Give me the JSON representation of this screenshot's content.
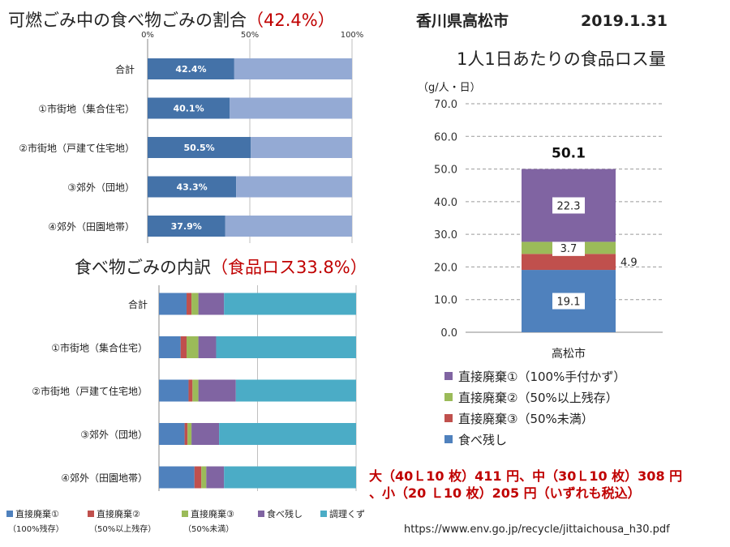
{
  "chart_data": [
    {
      "type": "bar",
      "orientation": "horizontal",
      "stacked": true,
      "title": "可燃ごみ中の食べ物ごみの割合",
      "title_highlight": "（42.4%）",
      "tick_labels": [
        "0%",
        "50%",
        "100%"
      ],
      "xlim": [
        0,
        100
      ],
      "categories": [
        "合計",
        "①市街地（集合住宅）",
        "②市街地（戸建て住宅地）",
        "③郊外（団地）",
        "④郊外（田園地帯）"
      ],
      "values": [
        42.4,
        40.1,
        50.5,
        43.3,
        37.9
      ],
      "value_labels": [
        "42.4%",
        "40.1%",
        "50.5%",
        "43.3%",
        "37.9%"
      ],
      "colors": {
        "food": "#4472a8",
        "rest": "#94aad4"
      },
      "grid": true
    },
    {
      "type": "bar",
      "orientation": "horizontal",
      "stacked": true,
      "title": "食べ物ごみの内訳",
      "title_highlight": "（食品ロス33.8%）",
      "categories": [
        "合計",
        "①市街地（集合住宅）",
        "②市街地（戸建て住宅地）",
        "③郊外（団地）",
        "④郊外（田園地帯）"
      ],
      "series": [
        {
          "name": "直接廃棄①",
          "note": "（100%残存）",
          "color": "#4f81bd",
          "values": [
            14,
            11,
            15,
            13,
            18
          ]
        },
        {
          "name": "直接廃棄②",
          "note": "（50%以上残存）",
          "color": "#c0504d",
          "values": [
            2.5,
            3,
            2,
            1.5,
            3.5
          ]
        },
        {
          "name": "直接廃棄③",
          "note": "（50%未満）",
          "color": "#9bbb59",
          "values": [
            3.5,
            6,
            3,
            2,
            2.5
          ]
        },
        {
          "name": "食べ残し",
          "note": "",
          "color": "#8064a2",
          "values": [
            13,
            9,
            19,
            14,
            9
          ]
        },
        {
          "name": "調理くず",
          "note": "",
          "color": "#4bacc6",
          "values": [
            67,
            71,
            61,
            69.5,
            67
          ]
        }
      ],
      "xlim": [
        0,
        100
      ],
      "grid": true
    },
    {
      "type": "bar",
      "stacked": true,
      "heading": "香川県高松市",
      "date": "2019.1.31",
      "title": "1人1日あたりの食品ロス量",
      "unit_label": "（g/人・日）",
      "ylim": [
        0,
        70
      ],
      "y_ticks": [
        "0.0",
        "10.0",
        "20.0",
        "30.0",
        "40.0",
        "50.0",
        "60.0",
        "70.0"
      ],
      "categories": [
        "高松市"
      ],
      "total_label": "50.1",
      "series": [
        {
          "name": "食べ残し",
          "color": "#4f81bd",
          "values": [
            19.1
          ],
          "label": "19.1"
        },
        {
          "name": "直接廃棄③（50%未満）",
          "color": "#c0504d",
          "values": [
            4.9
          ],
          "label": "4.9"
        },
        {
          "name": "直接廃棄②（50%以上残存）",
          "color": "#9bbb59",
          "values": [
            3.7
          ],
          "label": "3.7"
        },
        {
          "name": "直接廃棄①（100%手付かず）",
          "color": "#8064a2",
          "values": [
            22.3
          ],
          "label": "22.3"
        }
      ],
      "legend": "bottom",
      "grid": true
    }
  ],
  "price_note": {
    "line1": "大（40Ｌ10 枚）411 円、中（30Ｌ10 枚）308 円",
    "line2": "、小（20 Ｌ10 枚）205 円（いずれも税込）"
  },
  "source_url": "https://www.env.go.jp/recycle/jittaichousa_h30.pdf"
}
